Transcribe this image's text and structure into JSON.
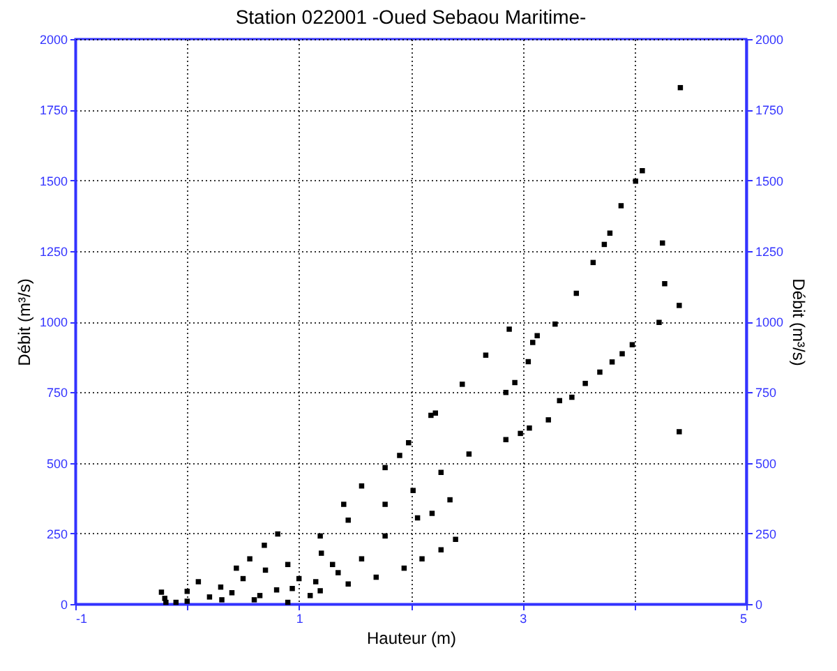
{
  "chart_data": {
    "type": "scatter",
    "title": "Station 022001 -Oued Sebaou Maritime-",
    "xlabel": "Hauteur (m)",
    "ylabel": "Débit (m³/s)",
    "y2label": "Débit (m³/s)",
    "xlim": [
      -1,
      5
    ],
    "xticks": [
      -1,
      {
        "value": 0,
        "label": null
      },
      1,
      {
        "value": 2,
        "label": null
      },
      3,
      {
        "value": 4,
        "label": null
      },
      5
    ],
    "ylim": [
      0,
      2000
    ],
    "yticks": [
      0,
      250,
      500,
      750,
      1000,
      1250,
      1500,
      1750,
      2000
    ],
    "y2lim": [
      0,
      2000
    ],
    "y2ticks": [
      0,
      250,
      500,
      750,
      1000,
      1250,
      1500,
      1750,
      2000
    ],
    "grid": true,
    "marker": "square",
    "series": [
      {
        "color": "#000000",
        "x": [
          4.07,
          4.01,
          3.88,
          3.78,
          3.73,
          3.63,
          3.48,
          3.29,
          3.13,
          3.09,
          3.05,
          2.88,
          2.93,
          2.67,
          2.46,
          2.22,
          2.85,
          3.98,
          3.89,
          3.8,
          3.69,
          3.56,
          3.44,
          3.33,
          3.23,
          3.06,
          2.98,
          2.85,
          4.25,
          4.27,
          4.4,
          4.22,
          4.4,
          4.41,
          2.4,
          2.27,
          2.1,
          1.94,
          1.69,
          1.44,
          1.19,
          0.9,
          1.77,
          1.56,
          1.35,
          1.15,
          0.94,
          0.65,
          0.31,
          -0.1,
          0.81,
          0.69,
          0.56,
          0.44,
          0.1,
          -0.23,
          -0.19,
          1.19,
          1.44,
          1.77,
          2.02,
          2.27,
          2.52,
          1.4,
          1.56,
          1.77,
          1.98,
          2.18,
          1.9,
          2.06,
          2.19,
          2.35,
          -0.2,
          0.0,
          0.2,
          0.4,
          0.6,
          0.8,
          1.0,
          1.1,
          0.3,
          0.5,
          0.7,
          0.9,
          1.2,
          1.3,
          0.0
        ],
        "values": [
          1534,
          1497,
          1410,
          1313,
          1273,
          1209,
          1100,
          991,
          950,
          926,
          858,
          973,
          784,
          881,
          778,
          676,
          749,
          918,
          886,
          857,
          821,
          781,
          732,
          720,
          652,
          623,
          604,
          582,
          1278,
          1134,
          1057,
          997,
          610,
          1828,
          229,
          192,
          160,
          127,
          95,
          71,
          47,
          6,
          241,
          160,
          111,
          79,
          55,
          30,
          15,
          6,
          248,
          208,
          160,
          127,
          79,
          42,
          6,
          241,
          297,
          353,
          402,
          466,
          531,
          353,
          418,
          483,
          571,
          668,
          526,
          305,
          321,
          369,
          20,
          10,
          25,
          40,
          15,
          50,
          90,
          30,
          60,
          90,
          120,
          140,
          180,
          140,
          45
        ]
      }
    ]
  }
}
